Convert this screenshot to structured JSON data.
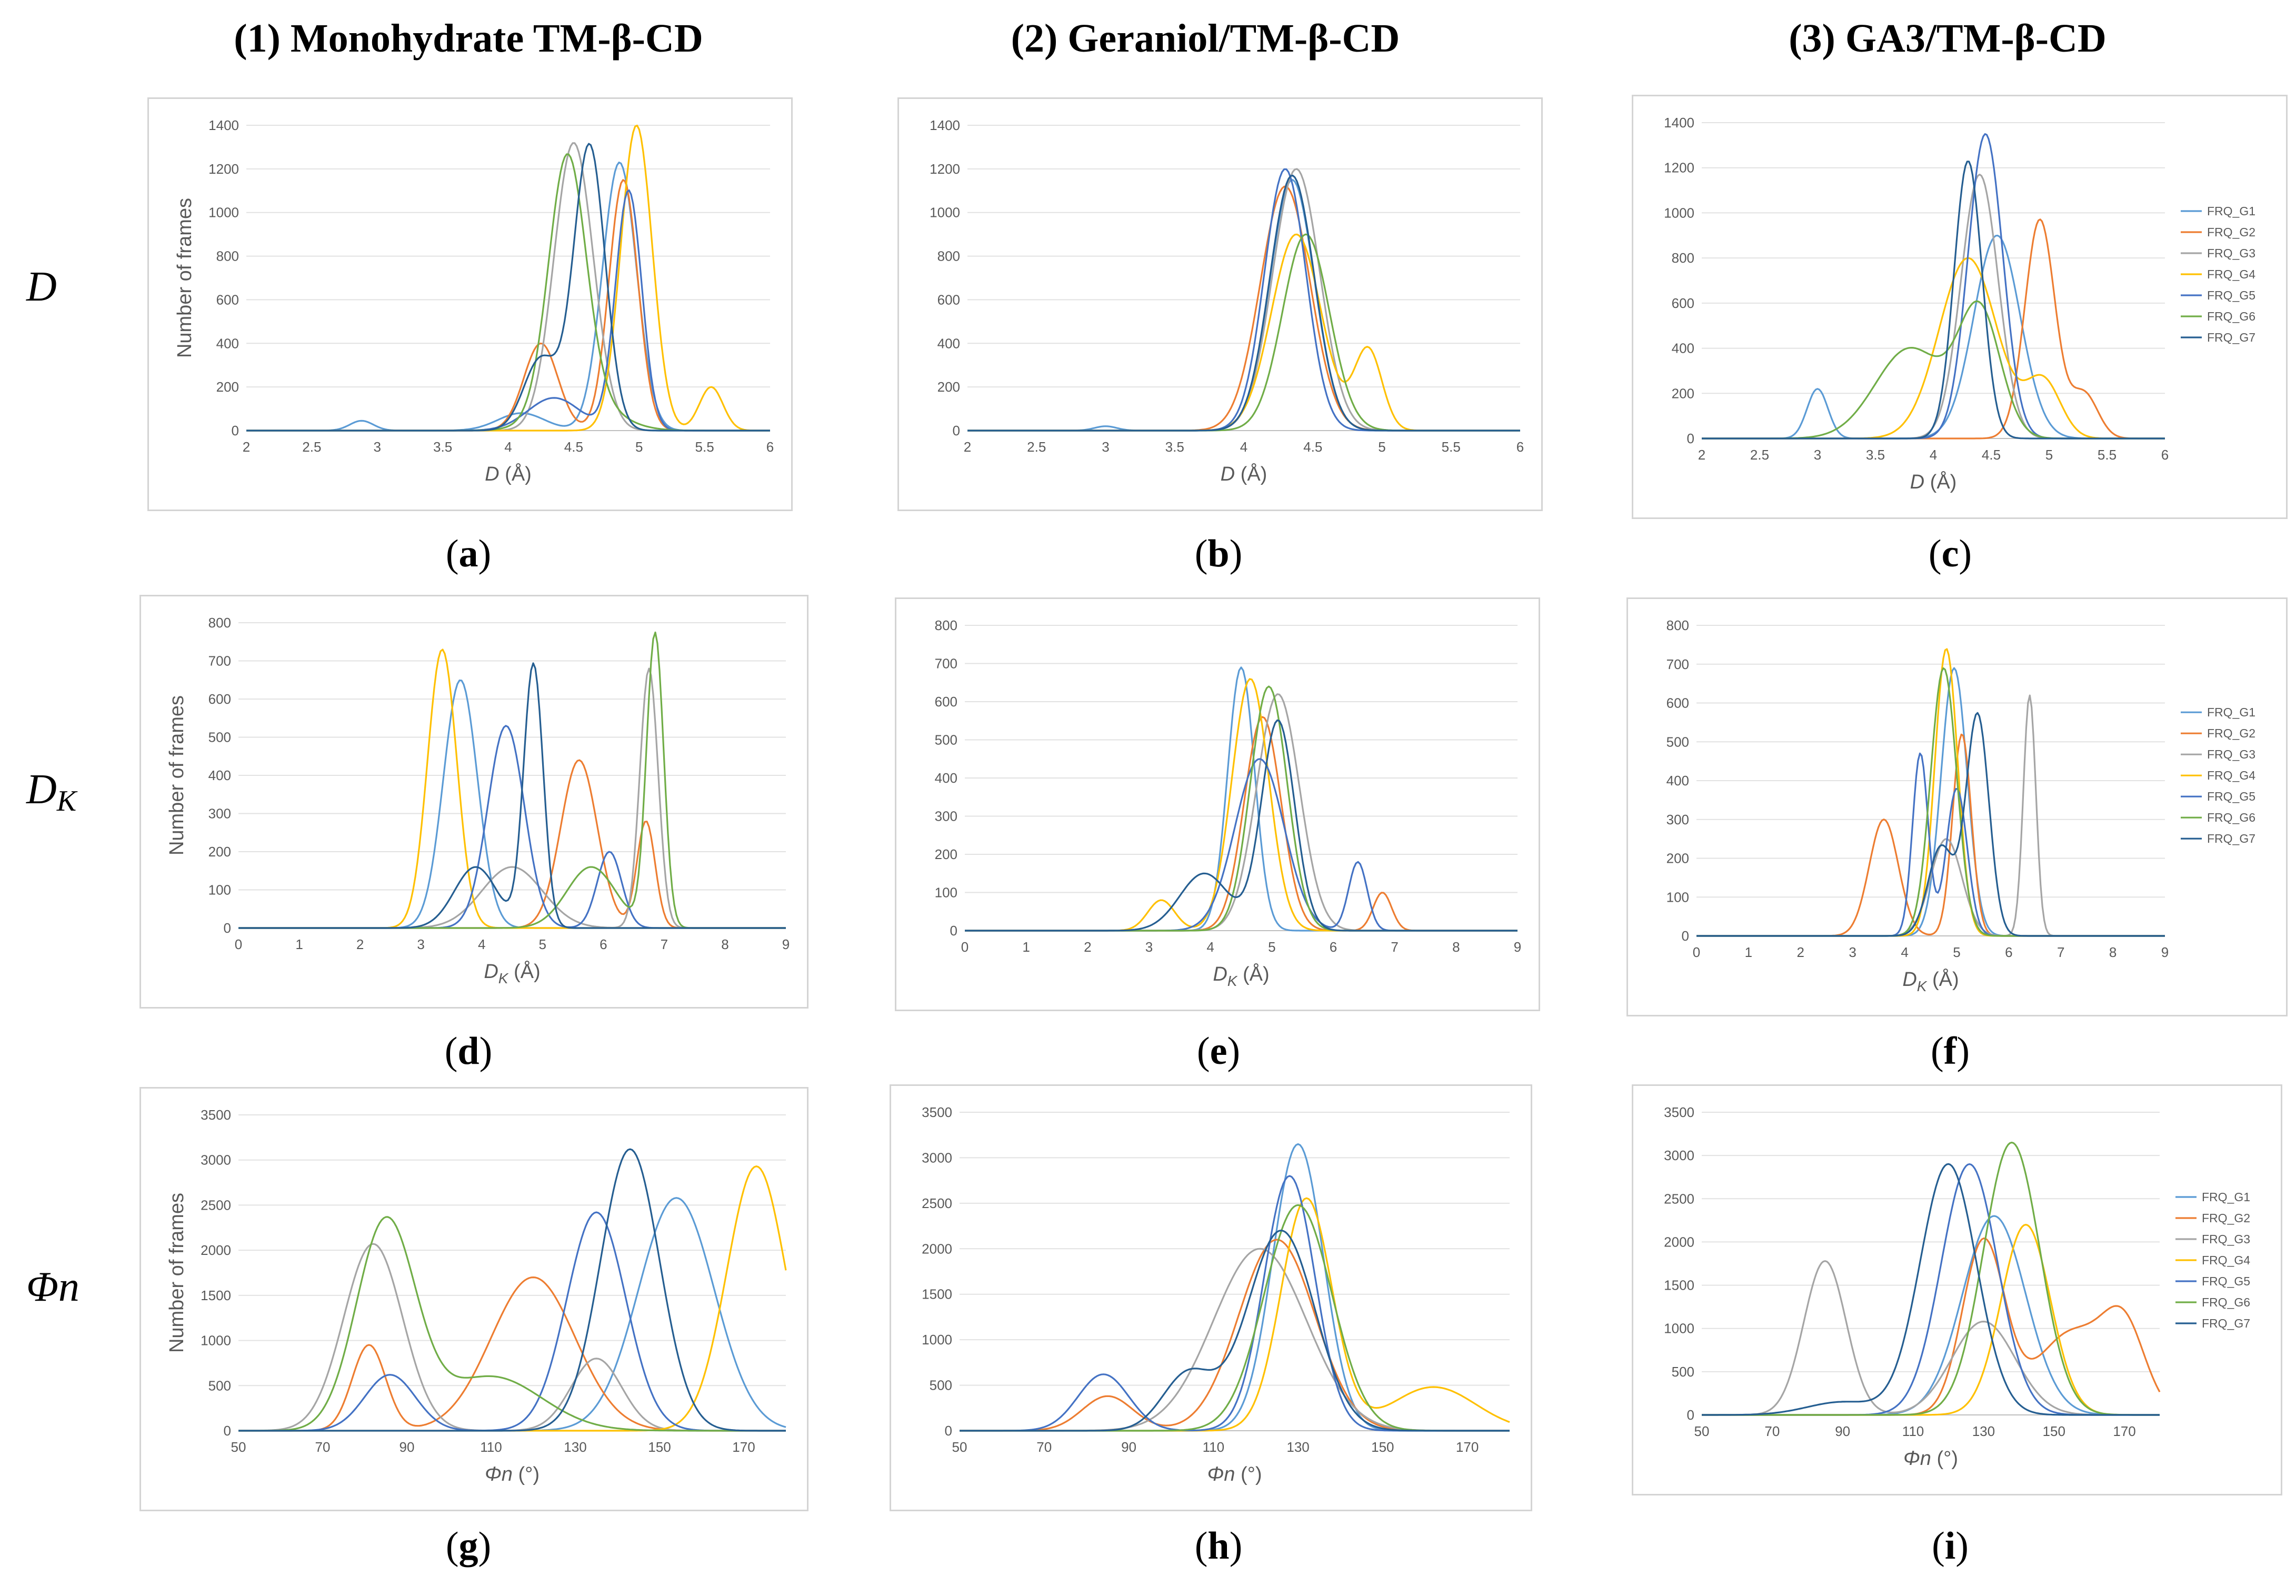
{
  "column_titles": [
    "(1)  Monohydrate TM-β-CD",
    "(2)  Geraniol/TM-β-CD",
    "(3)  GA3/TM-β-CD"
  ],
  "row_labels": [
    {
      "main": "D",
      "sub": ""
    },
    {
      "main": "D",
      "sub": "K"
    },
    {
      "main": "Φn",
      "sub": ""
    }
  ],
  "panel_letters": [
    "a",
    "b",
    "c",
    "d",
    "e",
    "f",
    "g",
    "h",
    "i"
  ],
  "series_names": [
    "FRQ_G1",
    "FRQ_G2",
    "FRQ_G3",
    "FRQ_G4",
    "FRQ_G5",
    "FRQ_G6",
    "FRQ_G7"
  ],
  "series_colors": [
    "#5b9bd5",
    "#ed7d31",
    "#a5a5a5",
    "#ffc000",
    "#4472c4",
    "#70ad47",
    "#255e91"
  ],
  "chart_data": [
    {
      "id": "a",
      "type": "line",
      "xlabel": "D (Å)",
      "ylabel": "Number of frames",
      "xlim": [
        2,
        6
      ],
      "ylim": [
        0,
        1400
      ],
      "xticks": [
        2,
        2.5,
        3,
        3.5,
        4,
        4.5,
        5,
        5.5,
        6
      ],
      "xtick_labels": [
        "2",
        "2.5",
        "3",
        "3.5",
        "4",
        "4.5",
        "5",
        "5.5",
        "6"
      ],
      "yticks": [
        0,
        200,
        400,
        600,
        800,
        1000,
        1200,
        1400
      ],
      "legend": false,
      "grid": true,
      "series": [
        {
          "peaks": [
            [
              2.88,
              45,
              0.09
            ],
            [
              4.1,
              80,
              0.18
            ],
            [
              4.85,
              1230,
              0.13
            ]
          ]
        },
        {
          "peaks": [
            [
              4.25,
              400,
              0.13
            ],
            [
              4.88,
              1150,
              0.11
            ]
          ]
        },
        {
          "peaks": [
            [
              4.5,
              1320,
              0.15
            ]
          ]
        },
        {
          "peaks": [
            [
              4.98,
              1400,
              0.12
            ],
            [
              5.55,
              200,
              0.09
            ]
          ]
        },
        {
          "peaks": [
            [
              4.35,
              150,
              0.2
            ],
            [
              4.92,
              1100,
              0.1
            ]
          ]
        },
        {
          "peaks": [
            [
              4.45,
              1130,
              0.14
            ],
            [
              4.55,
              150,
              0.25
            ]
          ]
        },
        {
          "peaks": [
            [
              4.25,
              330,
              0.13
            ],
            [
              4.62,
              1310,
              0.12
            ]
          ]
        }
      ]
    },
    {
      "id": "b",
      "type": "line",
      "xlabel": "D (Å)",
      "ylabel": "",
      "xlim": [
        2,
        6
      ],
      "ylim": [
        0,
        1400
      ],
      "xticks": [
        2,
        2.5,
        3,
        3.5,
        4,
        4.5,
        5,
        5.5,
        6
      ],
      "xtick_labels": [
        "2",
        "2.5",
        "3",
        "3.5",
        "4",
        "4.5",
        "5",
        "5.5",
        "6"
      ],
      "yticks": [
        0,
        200,
        400,
        600,
        800,
        1000,
        1200,
        1400
      ],
      "legend": false,
      "grid": true,
      "series": [
        {
          "peaks": [
            [
              3.0,
              20,
              0.08
            ],
            [
              4.35,
              1150,
              0.16
            ]
          ]
        },
        {
          "peaks": [
            [
              4.3,
              1120,
              0.18
            ]
          ]
        },
        {
          "peaks": [
            [
              4.38,
              1200,
              0.17
            ]
          ]
        },
        {
          "peaks": [
            [
              4.38,
              900,
              0.18
            ],
            [
              4.9,
              370,
              0.1
            ]
          ]
        },
        {
          "peaks": [
            [
              4.3,
              1200,
              0.15
            ]
          ]
        },
        {
          "peaks": [
            [
              4.45,
              900,
              0.17
            ]
          ]
        },
        {
          "peaks": [
            [
              4.35,
              1170,
              0.16
            ]
          ]
        }
      ]
    },
    {
      "id": "c",
      "type": "line",
      "xlabel": "D (Å)",
      "ylabel": "",
      "xlim": [
        2,
        6
      ],
      "ylim": [
        0,
        1400
      ],
      "xticks": [
        2,
        2.5,
        3,
        3.5,
        4,
        4.5,
        5,
        5.5,
        6
      ],
      "xtick_labels": [
        "2",
        "2.5",
        "3",
        "3.5",
        "4",
        "4.5",
        "5",
        "5.5",
        "6"
      ],
      "yticks": [
        0,
        200,
        400,
        600,
        800,
        1000,
        1200,
        1400
      ],
      "legend": true,
      "grid": true,
      "series": [
        {
          "peaks": [
            [
              3.0,
              220,
              0.09
            ],
            [
              4.55,
              900,
              0.2
            ]
          ]
        },
        {
          "peaks": [
            [
              4.92,
              970,
              0.13
            ],
            [
              5.3,
              200,
              0.12
            ]
          ]
        },
        {
          "peaks": [
            [
              4.4,
              1170,
              0.16
            ]
          ]
        },
        {
          "peaks": [
            [
              4.3,
              800,
              0.25
            ],
            [
              4.95,
              250,
              0.15
            ]
          ]
        },
        {
          "peaks": [
            [
              4.45,
              1350,
              0.15
            ]
          ]
        },
        {
          "peaks": [
            [
              3.8,
              400,
              0.3
            ],
            [
              4.4,
              550,
              0.18
            ]
          ]
        },
        {
          "peaks": [
            [
              4.3,
              1230,
              0.12
            ]
          ]
        }
      ]
    },
    {
      "id": "d",
      "type": "line",
      "xlabel": "DK (Å)",
      "ylabel": "Number of frames",
      "xlim": [
        0,
        9
      ],
      "ylim": [
        0,
        800
      ],
      "xticks": [
        0,
        1,
        2,
        3,
        4,
        5,
        6,
        7,
        8,
        9
      ],
      "xtick_labels": [
        "0",
        "1",
        "2",
        "3",
        "4",
        "5",
        "6",
        "7",
        "8",
        "9"
      ],
      "yticks": [
        0,
        100,
        200,
        300,
        400,
        500,
        600,
        700,
        800
      ],
      "legend": false,
      "grid": true,
      "series": [
        {
          "peaks": [
            [
              3.65,
              650,
              0.28
            ]
          ]
        },
        {
          "peaks": [
            [
              5.6,
              440,
              0.3
            ],
            [
              6.7,
              280,
              0.15
            ]
          ]
        },
        {
          "peaks": [
            [
              4.5,
              160,
              0.5
            ],
            [
              6.75,
              680,
              0.15
            ]
          ]
        },
        {
          "peaks": [
            [
              3.35,
              730,
              0.24
            ]
          ]
        },
        {
          "peaks": [
            [
              4.4,
              530,
              0.3
            ],
            [
              6.1,
              200,
              0.2
            ]
          ]
        },
        {
          "peaks": [
            [
              5.8,
              160,
              0.4
            ],
            [
              6.85,
              770,
              0.14
            ]
          ]
        },
        {
          "peaks": [
            [
              3.9,
              160,
              0.35
            ],
            [
              4.85,
              690,
              0.16
            ]
          ]
        }
      ]
    },
    {
      "id": "e",
      "type": "line",
      "xlabel": "DK (Å)",
      "ylabel": "",
      "xlim": [
        0,
        9
      ],
      "ylim": [
        0,
        800
      ],
      "xticks": [
        0,
        1,
        2,
        3,
        4,
        5,
        6,
        7,
        8,
        9
      ],
      "xtick_labels": [
        "0",
        "1",
        "2",
        "3",
        "4",
        "5",
        "6",
        "7",
        "8",
        "9"
      ],
      "yticks": [
        0,
        100,
        200,
        300,
        400,
        500,
        600,
        700,
        800
      ],
      "legend": false,
      "grid": true,
      "series": [
        {
          "peaks": [
            [
              4.5,
              690,
              0.22
            ]
          ]
        },
        {
          "peaks": [
            [
              4.85,
              560,
              0.3
            ],
            [
              6.8,
              100,
              0.15
            ]
          ]
        },
        {
          "peaks": [
            [
              5.1,
              620,
              0.35
            ]
          ]
        },
        {
          "peaks": [
            [
              3.2,
              80,
              0.22
            ],
            [
              4.65,
              660,
              0.3
            ]
          ]
        },
        {
          "peaks": [
            [
              4.8,
              450,
              0.4
            ],
            [
              6.4,
              180,
              0.15
            ]
          ]
        },
        {
          "peaks": [
            [
              4.95,
              640,
              0.3
            ]
          ]
        },
        {
          "peaks": [
            [
              3.9,
              150,
              0.4
            ],
            [
              5.1,
              550,
              0.27
            ]
          ]
        }
      ]
    },
    {
      "id": "f",
      "type": "line",
      "xlabel": "DK (Å)",
      "ylabel": "",
      "xlim": [
        0,
        9
      ],
      "ylim": [
        0,
        800
      ],
      "xticks": [
        0,
        1,
        2,
        3,
        4,
        5,
        6,
        7,
        8,
        9
      ],
      "xtick_labels": [
        "0",
        "1",
        "2",
        "3",
        "4",
        "5",
        "6",
        "7",
        "8",
        "9"
      ],
      "yticks": [
        0,
        100,
        200,
        300,
        400,
        500,
        600,
        700,
        800
      ],
      "legend": true,
      "grid": true,
      "series": [
        {
          "peaks": [
            [
              4.95,
              690,
              0.25
            ]
          ]
        },
        {
          "peaks": [
            [
              3.6,
              300,
              0.28
            ],
            [
              5.1,
              520,
              0.18
            ]
          ]
        },
        {
          "peaks": [
            [
              4.8,
              250,
              0.3
            ],
            [
              6.4,
              620,
              0.12
            ]
          ]
        },
        {
          "peaks": [
            [
              4.8,
              740,
              0.22
            ]
          ]
        },
        {
          "peaks": [
            [
              4.3,
              470,
              0.15
            ],
            [
              5.0,
              380,
              0.2
            ]
          ]
        },
        {
          "peaks": [
            [
              4.75,
              690,
              0.25
            ]
          ]
        },
        {
          "peaks": [
            [
              4.7,
              230,
              0.25
            ],
            [
              5.4,
              570,
              0.22
            ]
          ]
        }
      ]
    },
    {
      "id": "g",
      "type": "line",
      "xlabel": "Φn (°)",
      "ylabel": "Number of frames",
      "xlim": [
        50,
        180
      ],
      "ylim": [
        0,
        3500
      ],
      "xticks": [
        50,
        70,
        90,
        110,
        130,
        150,
        170
      ],
      "xtick_labels": [
        "50",
        "70",
        "90",
        "110",
        "130",
        "150",
        "170"
      ],
      "yticks": [
        0,
        500,
        1000,
        1500,
        2000,
        2500,
        3000,
        3500
      ],
      "legend": false,
      "grid": true,
      "series": [
        {
          "peaks": [
            [
              154,
              2580,
              9
            ]
          ]
        },
        {
          "peaks": [
            [
              81,
              950,
              4
            ],
            [
              120,
              1700,
              10
            ]
          ]
        },
        {
          "peaks": [
            [
              82,
              2070,
              7
            ],
            [
              135,
              800,
              6
            ]
          ]
        },
        {
          "peaks": [
            [
              173,
              2930,
              7
            ]
          ]
        },
        {
          "peaks": [
            [
              86,
              620,
              6
            ],
            [
              135,
              2420,
              7
            ]
          ]
        },
        {
          "peaks": [
            [
              85,
              2300,
              7
            ],
            [
              110,
              600,
              12
            ]
          ]
        },
        {
          "peaks": [
            [
              143,
              3120,
              7
            ]
          ]
        }
      ]
    },
    {
      "id": "h",
      "type": "line",
      "xlabel": "Φn (°)",
      "ylabel": "",
      "xlim": [
        50,
        180
      ],
      "ylim": [
        0,
        3500
      ],
      "xticks": [
        50,
        70,
        90,
        110,
        130,
        150,
        170
      ],
      "xtick_labels": [
        "50",
        "70",
        "90",
        "110",
        "130",
        "150",
        "170"
      ],
      "yticks": [
        0,
        500,
        1000,
        1500,
        2000,
        2500,
        3000,
        3500
      ],
      "legend": false,
      "grid": true,
      "series": [
        {
          "peaks": [
            [
              130,
              3150,
              6
            ]
          ]
        },
        {
          "peaks": [
            [
              85,
              380,
              6
            ],
            [
              125,
              2100,
              9
            ]
          ]
        },
        {
          "peaks": [
            [
              121,
              2000,
              11
            ]
          ]
        },
        {
          "peaks": [
            [
              132,
              2550,
              6
            ],
            [
              162,
              480,
              10
            ]
          ]
        },
        {
          "peaks": [
            [
              84,
              620,
              6
            ],
            [
              128,
              2800,
              6
            ]
          ]
        },
        {
          "peaks": [
            [
              130,
              2480,
              8
            ]
          ]
        },
        {
          "peaks": [
            [
              104,
              620,
              6
            ],
            [
              126,
              2200,
              8
            ]
          ]
        }
      ]
    },
    {
      "id": "i",
      "type": "line",
      "xlabel": "Φn (°)",
      "ylabel": "",
      "xlim": [
        50,
        180
      ],
      "ylim": [
        0,
        3500
      ],
      "xticks": [
        50,
        70,
        90,
        110,
        130,
        150,
        170
      ],
      "xtick_labels": [
        "50",
        "70",
        "90",
        "110",
        "130",
        "150",
        "170"
      ],
      "yticks": [
        0,
        500,
        1000,
        1500,
        2000,
        2500,
        3000,
        3500
      ],
      "legend": true,
      "grid": true,
      "series": [
        {
          "peaks": [
            [
              133,
              2300,
              9
            ]
          ]
        },
        {
          "peaks": [
            [
              130,
              2000,
              6
            ],
            [
              155,
              950,
              10
            ],
            [
              170,
              900,
              6
            ]
          ]
        },
        {
          "peaks": [
            [
              85,
              1780,
              6
            ],
            [
              130,
              1080,
              9
            ]
          ]
        },
        {
          "peaks": [
            [
              142,
              2200,
              7
            ]
          ]
        },
        {
          "peaks": [
            [
              126,
              2900,
              8
            ]
          ]
        },
        {
          "peaks": [
            [
              138,
              3150,
              8
            ]
          ]
        },
        {
          "peaks": [
            [
              90,
              150,
              10
            ],
            [
              120,
              2900,
              8
            ]
          ]
        }
      ]
    }
  ]
}
